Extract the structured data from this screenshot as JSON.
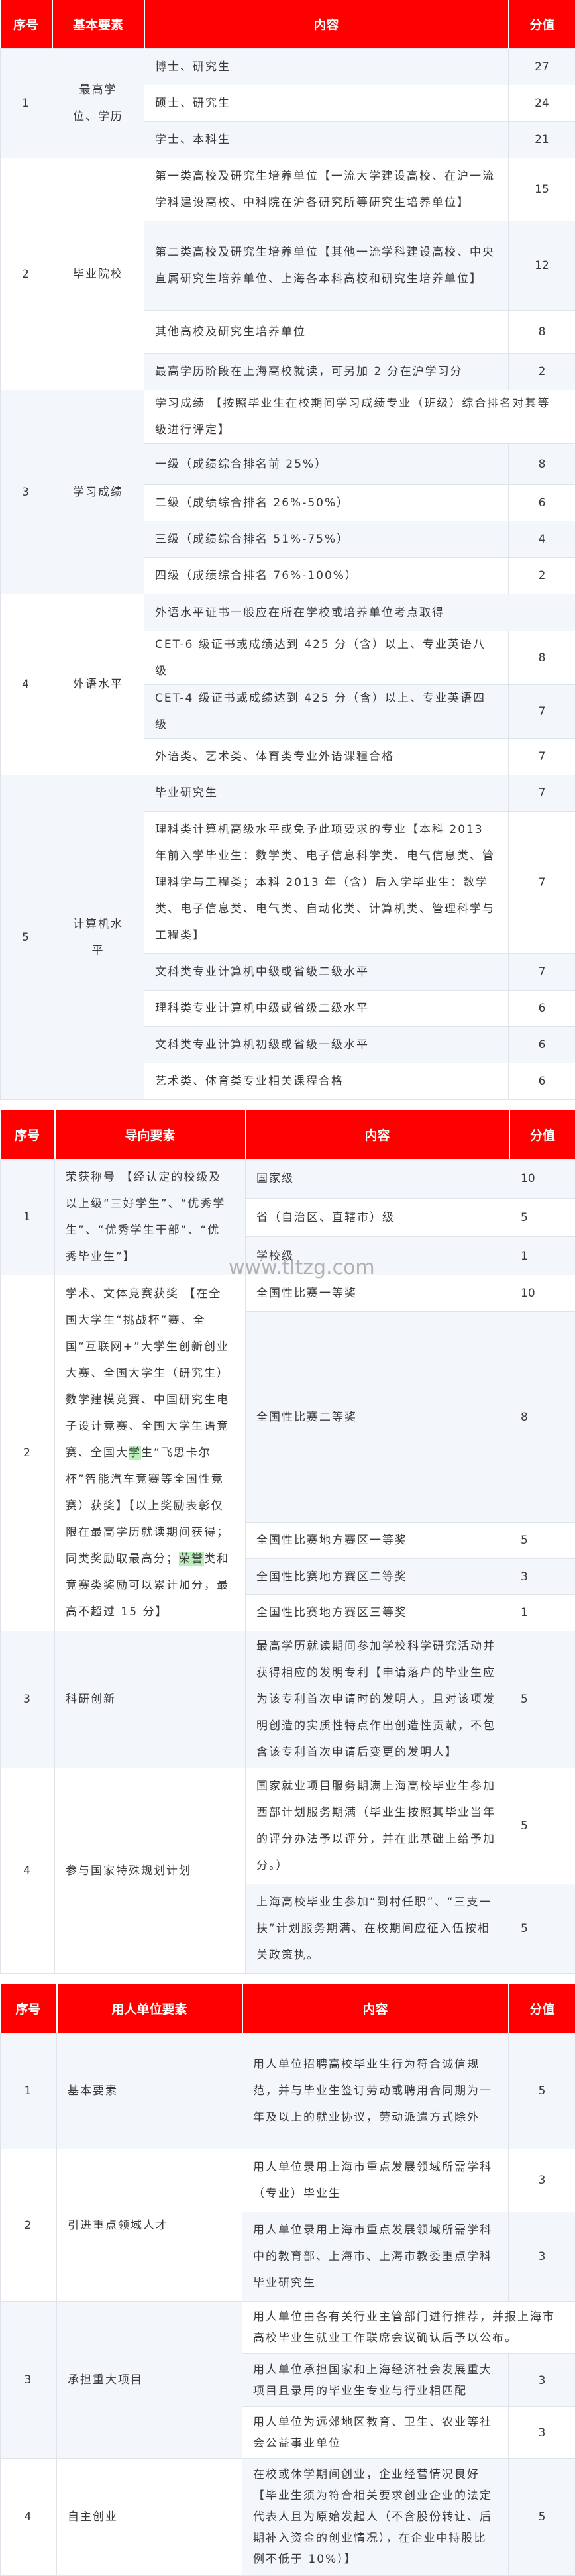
{
  "colors": {
    "header": "#ff0000",
    "light_row": "#f3f7fb",
    "highlight": "#b9f0b9"
  },
  "watermark": "www.tltzg.com",
  "tables": [
    {
      "headers": [
        "序号",
        "基本要素",
        "内容",
        "分值"
      ],
      "score_align": "center",
      "rows": [
        {
          "no": "1",
          "factor": [
            {
              "t": "最高学位、学历"
            }
          ],
          "items": [
            {
              "text": "博士、研究生",
              "score": "27"
            },
            {
              "text": "硕士、研究生",
              "score": "24"
            },
            {
              "text": "学士、本科生",
              "score": "21"
            }
          ]
        },
        {
          "no": "2",
          "factor": [
            {
              "t": "毕业院校"
            }
          ],
          "items": [
            {
              "text": "第一类高校及研究生培养单位【一流大学建设高校、在沪一流学科建设高校、中科院在沪各研究所等研究生培养单位】",
              "score": "15"
            },
            {
              "text": "第二类高校及研究生培养单位【其他一流学科建设高校、中央直属研究生培养单位、上海各本科高校和研究生培养单位】",
              "score": "12"
            },
            {
              "text": "其他高校及研究生培养单位",
              "score": "8"
            },
            {
              "text": "最高学历阶段在上海高校就读，可另加 2 分在沪学习分",
              "score": "2"
            }
          ]
        },
        {
          "no": "3",
          "factor": [
            {
              "t": "学习成绩"
            }
          ],
          "items": [
            {
              "text": "学习成绩 【按照毕业生在校期间学习成绩专业（班级）综合排名对其等级进行评定】",
              "score": null
            },
            {
              "text": "一级（成绩综合排名前 25%）",
              "score": "8"
            },
            {
              "text": "二级（成绩综合排名 26%-50%）",
              "score": "6"
            },
            {
              "text": "三级（成绩综合排名 51%-75%）",
              "score": "4"
            },
            {
              "text": "四级（成绩综合排名 76%-100%）",
              "score": "2"
            }
          ]
        },
        {
          "no": "4",
          "factor": [
            {
              "t": "外语水平"
            }
          ],
          "items": [
            {
              "text": "外语水平证书一般应在所在学校或培养单位考点取得",
              "score": null
            },
            {
              "text": "CET-6 级证书或成绩达到 425 分（含）以上、专业英语八级",
              "score": "8"
            },
            {
              "text": "CET-4 级证书或成绩达到 425 分（含）以上、专业英语四级",
              "score": "7"
            },
            {
              "text": "外语类、艺术类、体育类专业外语课程合格",
              "score": "7"
            }
          ]
        },
        {
          "no": "5",
          "factor": [
            {
              "t": "计算机水平"
            }
          ],
          "items": [
            {
              "text": "毕业研究生",
              "score": "7"
            },
            {
              "text": "理科类计算机高级水平或免予此项要求的专业【本科 2013 年前入学毕业生：数学类、电子信息科学类、电气信息类、管理科学与工程类；本科 2013 年（含）后入学毕业生：数学类、电子信息类、电气类、自动化类、计算机类、管理科学与工程类】",
              "score": "7"
            },
            {
              "text": "文科类专业计算机中级或省级二级水平",
              "score": "7"
            },
            {
              "text": "理科类专业计算机中级或省级二级水平",
              "score": "6"
            },
            {
              "text": "文科类专业计算机初级或省级一级水平",
              "score": "6"
            },
            {
              "text": "艺术类、体育类专业相关课程合格",
              "score": "6"
            }
          ]
        }
      ]
    },
    {
      "headers": [
        "序号",
        "导向要素",
        "内容",
        "分值"
      ],
      "score_align": "left",
      "rows": [
        {
          "no": "1",
          "factor": [
            {
              "t": "荣获称号 【经认定的校级及以上级“三好学生”、“优秀学生”、“优秀学生干部”、“优秀毕业生”】"
            }
          ],
          "items": [
            {
              "text": "国家级",
              "score": "10"
            },
            {
              "text": "省（自治区、直辖市）级",
              "score": "5"
            },
            {
              "text": "学校级",
              "score": "1"
            }
          ]
        },
        {
          "no": "2",
          "factor": [
            {
              "t": "学术、文体竞赛获奖 【在全国大学生“挑战杯”赛、全国“互联网+”大学生创新创业大赛、全国大学生（研究生）数学建模竞赛、中国研究生电子设计竞赛、全国大学生语竞赛、全国大"
            },
            {
              "t": "学",
              "hl": true
            },
            {
              "t": "生“飞思卡尔杯”智能汽车竞赛等全国性竞赛）获奖】【以上奖励表彰仅限在最高学历就读期间获得；同类奖励取最高分；"
            },
            {
              "t": "荣誉",
              "hl": true
            },
            {
              "t": "类和竞赛类奖励可以累计加分，最高不超过 15 分】"
            }
          ],
          "items": [
            {
              "text": "全国性比赛一等奖",
              "score": "10"
            },
            {
              "text": "全国性比赛二等奖",
              "score": "8"
            },
            {
              "text": "全国性比赛地方赛区一等奖",
              "score": "5"
            },
            {
              "text": "全国性比赛地方赛区二等奖",
              "score": "3"
            },
            {
              "text": "全国性比赛地方赛区三等奖",
              "score": "1"
            }
          ]
        },
        {
          "no": "3",
          "factor": [
            {
              "t": "科研创新"
            }
          ],
          "items": [
            {
              "text": "最高学历就读期间参加学校科学研究活动并获得相应的发明专利【申请落户的毕业生应为该专利首次申请时的发明人，且对该项发明创造的实质性特点作出创造性贡献，不包含该专利首次申请后变更的发明人】",
              "score": "5"
            }
          ]
        },
        {
          "no": "4",
          "factor": [
            {
              "t": "参与国家特殊规划计划"
            }
          ],
          "items": [
            {
              "text": "国家就业项目服务期满上海高校毕业生参加西部计划服务期满（毕业生按照其毕业当年的评分办法予以评分，并在此基础上给予加分。）",
              "score": "5"
            },
            {
              "text": "上海高校毕业生参加“到村任职”、“三支一扶”计划服务期满、在校期间应征入伍按相关政策执。",
              "score": "5"
            }
          ]
        }
      ]
    },
    {
      "headers": [
        "序号",
        "用人单位要素",
        "内容",
        "分值"
      ],
      "score_align": "center",
      "rows": [
        {
          "no": "1",
          "factor": [
            {
              "t": "基本要素"
            }
          ],
          "items": [
            {
              "text": "用人单位招聘高校毕业生行为符合诚信规范，并与毕业生签订劳动或聘用合同期为一年及以上的就业协议，劳动派遣方式除外",
              "score": "5"
            }
          ]
        },
        {
          "no": "2",
          "factor": [
            {
              "t": "引进重点领域人才"
            }
          ],
          "items": [
            {
              "text": "用人单位录用上海市重点发展领域所需学科（专业）毕业生",
              "score": "3"
            },
            {
              "text": "用人单位录用上海市重点发展领域所需学科中的教育部、上海市、上海市教委重点学科毕业研究生",
              "score": "3"
            }
          ]
        },
        {
          "no": "3",
          "factor": [
            {
              "t": "承担重大项目"
            }
          ],
          "items": [
            {
              "text": "用人单位由各有关行业主管部门进行推荐，并报上海市高校毕业生就业工作联席会议确认后予以公布。",
              "score": null
            },
            {
              "text": "用人单位承担国家和上海经济社会发展重大项目且录用的毕业生专业与行业相匹配",
              "score": "3"
            },
            {
              "text": "用人单位为远郊地区教育、卫生、农业等社会公益事业单位",
              "score": "3"
            }
          ]
        },
        {
          "no": "4",
          "factor": [
            {
              "t": "自主创业"
            }
          ],
          "items": [
            {
              "text": "在校或休学期间创业，企业经营情况良好【毕业生须为符合相关要求创业企业的法定代表人且为原始发起人（不含股份转让、后期补入资金的创业情况），在企业中持股比例不低于 10%）】",
              "score": "5"
            }
          ]
        }
      ]
    }
  ]
}
